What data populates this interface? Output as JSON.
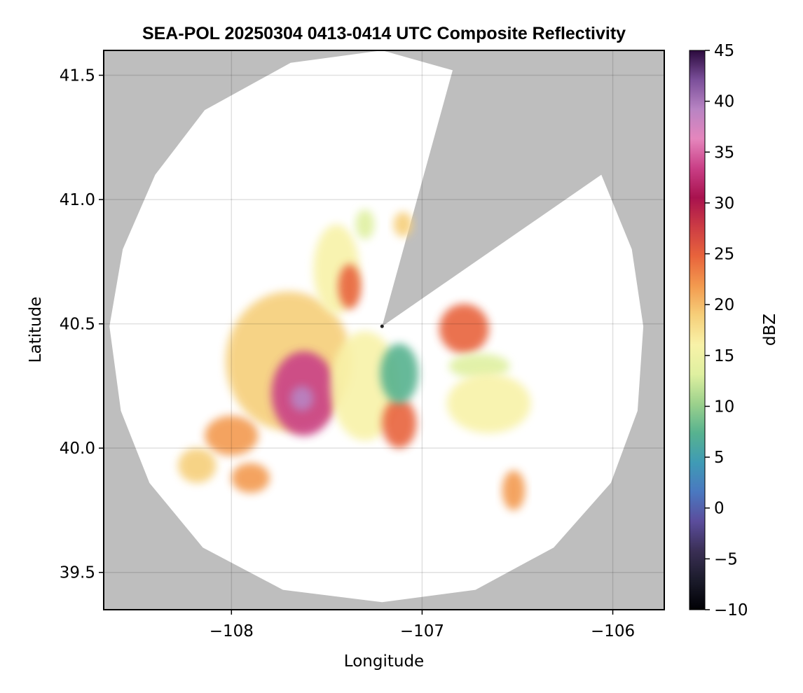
{
  "chart_data": {
    "type": "heatmap",
    "title": "SEA-POL 20250304 0413-0414 UTC Composite Reflectivity",
    "xlabel": "Longitude",
    "ylabel": "Latitude",
    "xlim": [
      -108.67,
      -105.73
    ],
    "ylim": [
      39.35,
      41.6
    ],
    "xticks": [
      -108,
      -107,
      -106
    ],
    "xtick_labels": [
      "−108",
      "−107",
      "−106"
    ],
    "yticks": [
      39.5,
      40.0,
      40.5,
      41.0,
      41.5
    ],
    "ytick_labels": [
      "39.5",
      "40.0",
      "40.5",
      "41.0",
      "41.5"
    ],
    "grid": true,
    "background_color": "#bebebe",
    "coverage_color": "#ffffff",
    "radar": {
      "center_lon": -107.21,
      "center_lat": 40.49,
      "coverage_boundary": [
        [
          -107.21,
          39.38
        ],
        [
          -106.72,
          39.43
        ],
        [
          -106.31,
          39.6
        ],
        [
          -106.01,
          39.86
        ],
        [
          -105.87,
          40.15
        ],
        [
          -105.84,
          40.49
        ],
        [
          -105.9,
          40.8
        ],
        [
          -106.06,
          41.1
        ],
        [
          -107.21,
          40.49
        ],
        [
          -106.84,
          41.52
        ],
        [
          -107.21,
          41.6
        ],
        [
          -107.69,
          41.55
        ],
        [
          -108.14,
          41.36
        ],
        [
          -108.4,
          41.1
        ],
        [
          -108.57,
          40.8
        ],
        [
          -108.64,
          40.49
        ],
        [
          -108.58,
          40.15
        ],
        [
          -108.43,
          39.86
        ],
        [
          -108.15,
          39.6
        ],
        [
          -107.73,
          39.43
        ]
      ]
    },
    "colorbar": {
      "label": "dBZ",
      "range": [
        -10,
        45
      ],
      "ticks": [
        -10,
        -5,
        0,
        5,
        10,
        15,
        20,
        25,
        30,
        35,
        40,
        45
      ],
      "tick_labels": [
        "−10",
        "−5",
        "0",
        "5",
        "10",
        "15",
        "20",
        "25",
        "30",
        "35",
        "40",
        "45"
      ],
      "colormap": [
        "#000004",
        "#1b1b2b",
        "#3a2f55",
        "#5b4d9c",
        "#4a78c0",
        "#3f9bb5",
        "#57b28f",
        "#9cd18c",
        "#dff0a0",
        "#f8f2a8",
        "#f6cf7a",
        "#f39a4f",
        "#e8643c",
        "#cc3c44",
        "#a8124e",
        "#c93f86",
        "#e586bd",
        "#b884c3",
        "#7b4f9a",
        "#2b0a3d"
      ]
    },
    "echo_regions": [
      {
        "name": "main-rainband",
        "lon": -107.7,
        "lat": 40.35,
        "rlon": 0.33,
        "rlat": 0.28,
        "dbz": 18
      },
      {
        "name": "main-core",
        "lon": -107.62,
        "lat": 40.22,
        "rlon": 0.17,
        "rlat": 0.17,
        "dbz": 32
      },
      {
        "name": "intense-core",
        "lon": -107.63,
        "lat": 40.2,
        "rlon": 0.06,
        "rlat": 0.05,
        "dbz": 40
      },
      {
        "name": "northern-band",
        "lon": -107.45,
        "lat": 40.72,
        "rlon": 0.12,
        "rlat": 0.18,
        "dbz": 17
      },
      {
        "name": "northern-core",
        "lon": -107.38,
        "lat": 40.65,
        "rlon": 0.06,
        "rlat": 0.09,
        "dbz": 26
      },
      {
        "name": "near-radar-band",
        "lon": -107.3,
        "lat": 40.25,
        "rlon": 0.18,
        "rlat": 0.22,
        "dbz": 15
      },
      {
        "name": "south-core",
        "lon": -107.12,
        "lat": 40.1,
        "rlon": 0.09,
        "rlat": 0.1,
        "dbz": 24
      },
      {
        "name": "near-radar-low",
        "lon": -107.12,
        "lat": 40.3,
        "rlon": 0.1,
        "rlat": 0.12,
        "dbz": 6
      },
      {
        "name": "east-cell",
        "lon": -106.78,
        "lat": 40.48,
        "rlon": 0.13,
        "rlat": 0.1,
        "dbz": 24
      },
      {
        "name": "east-band",
        "lon": -106.7,
        "lat": 40.33,
        "rlon": 0.16,
        "rlat": 0.05,
        "dbz": 13
      },
      {
        "name": "southeast-band",
        "lon": -106.65,
        "lat": 40.18,
        "rlon": 0.22,
        "rlat": 0.12,
        "dbz": 15
      },
      {
        "name": "southwest-cell",
        "lon": -108.0,
        "lat": 40.05,
        "rlon": 0.14,
        "rlat": 0.08,
        "dbz": 22
      },
      {
        "name": "far-southwest-cell",
        "lon": -108.18,
        "lat": 39.93,
        "rlon": 0.1,
        "rlat": 0.07,
        "dbz": 18
      },
      {
        "name": "south-cell",
        "lon": -107.9,
        "lat": 39.88,
        "rlon": 0.1,
        "rlat": 0.06,
        "dbz": 21
      },
      {
        "name": "southeast-cell",
        "lon": -106.52,
        "lat": 39.83,
        "rlon": 0.06,
        "rlat": 0.08,
        "dbz": 23
      },
      {
        "name": "north-patch",
        "lon": -107.3,
        "lat": 40.9,
        "rlon": 0.05,
        "rlat": 0.06,
        "dbz": 13
      },
      {
        "name": "north-east-patch",
        "lon": -107.1,
        "lat": 40.9,
        "rlon": 0.05,
        "rlat": 0.05,
        "dbz": 18
      }
    ]
  }
}
